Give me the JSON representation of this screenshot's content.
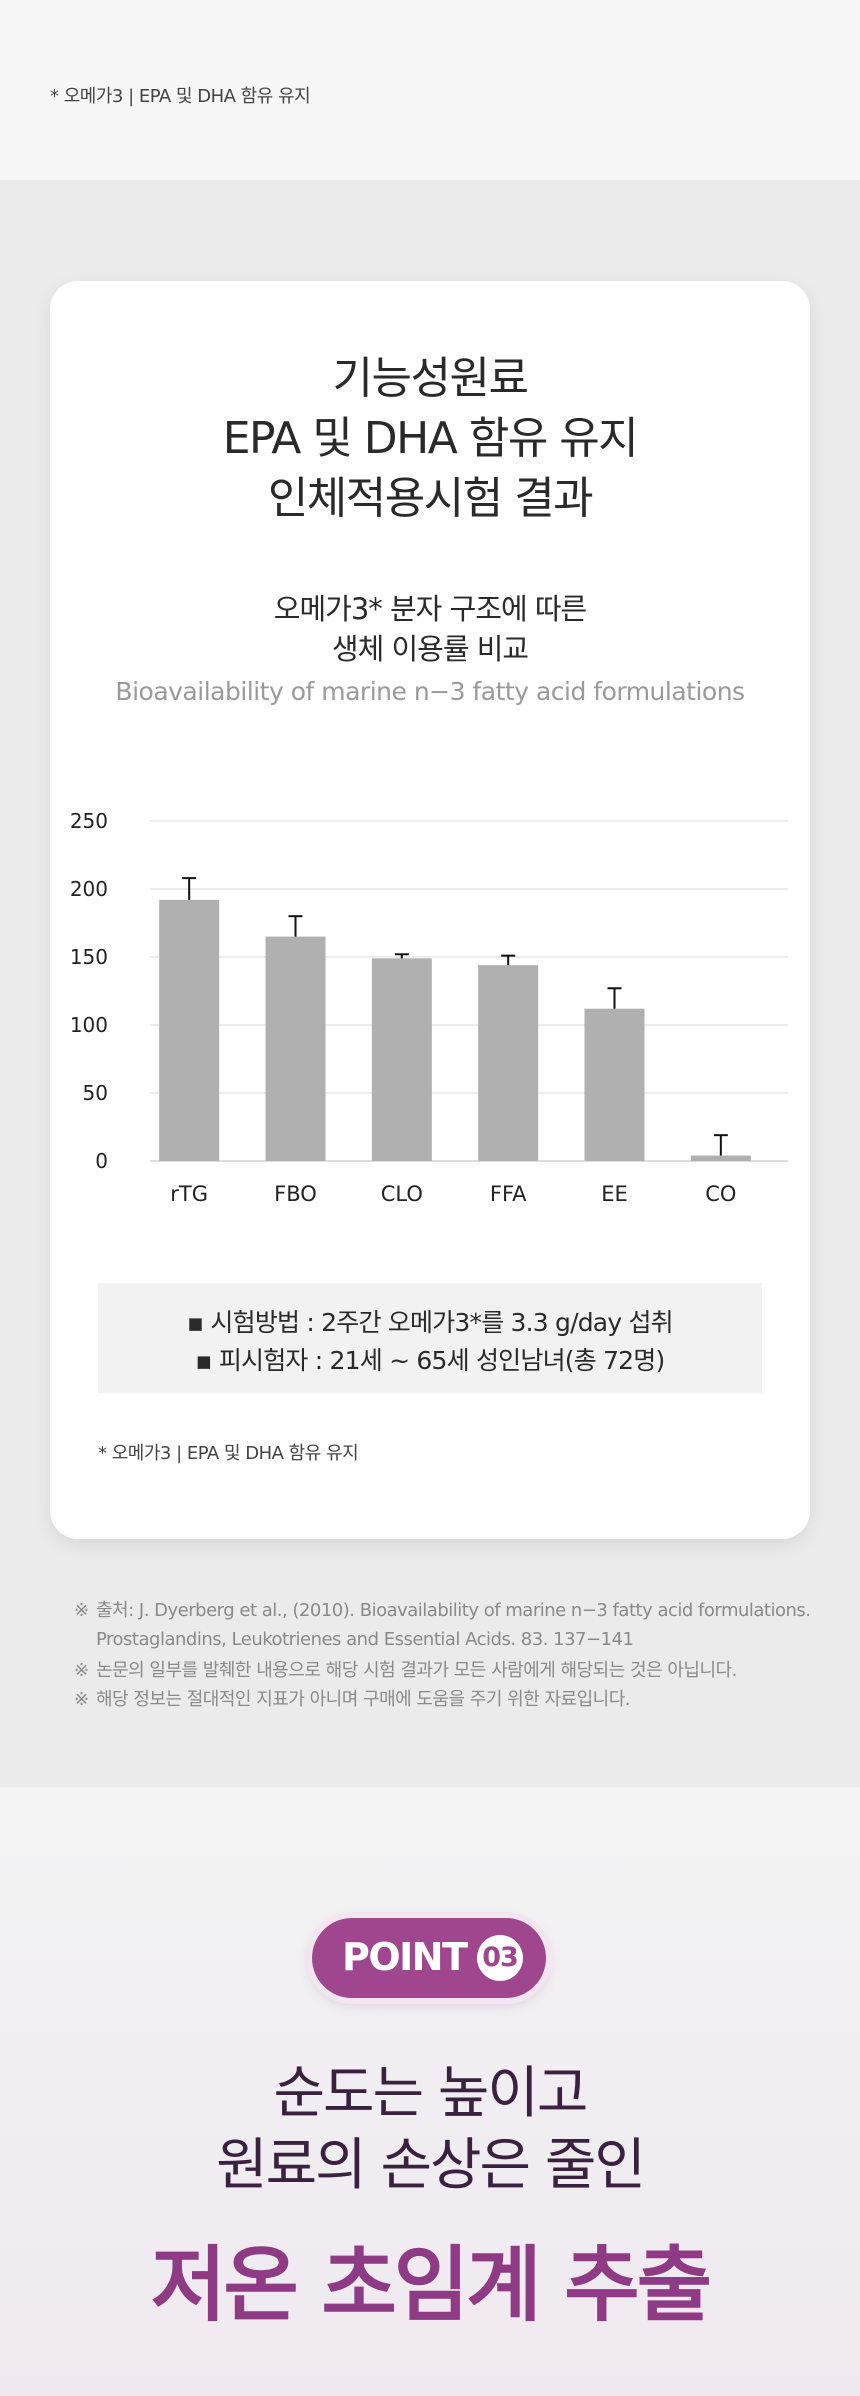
{
  "top_note": "*  오메가3 | EPA 및 DHA 함유 유지",
  "card": {
    "title_lines": [
      "기능성원료",
      "EPA 및 DHA 함유 유지",
      "인체적용시험 결과"
    ],
    "subtitle_lines": [
      "오메가3* 분자 구조에 따른",
      "생체 이용률 비교"
    ],
    "subtitle_en": "Bioavailability of marine n−3 fatty acid formulations",
    "method": {
      "row1": "▪ 시험방법 : 2주간 오메가3*를 3.3 g/day 섭취",
      "row2": "▪ 피시험자 : 21세 ~ 65세 성인남녀(총 72명)"
    },
    "note": "*  오메가3 | EPA 및 DHA 함유 유지"
  },
  "chart_data": {
    "type": "bar",
    "title": "Bioavailability of marine n−3 fatty acid formulations",
    "categories": [
      "rTG",
      "FBO",
      "CLO",
      "FFA",
      "EE",
      "CO"
    ],
    "values": [
      192,
      165,
      149,
      144,
      112,
      4
    ],
    "error_upper": [
      208,
      180,
      152,
      151,
      127,
      19
    ],
    "ylim": [
      0,
      250
    ],
    "yticks": [
      0,
      50,
      100,
      150,
      200,
      250
    ],
    "ytick_labels": [
      "0",
      "50",
      "100",
      "150",
      "200",
      "250"
    ],
    "grid": true,
    "xlabel": "",
    "ylabel": "",
    "colors": {
      "bar": "#b0b0b0",
      "grid": "#d8d8d8",
      "error": "#111111"
    }
  },
  "sources": {
    "mark": "※",
    "line1a": "출처: J. Dyerberg et al., (2010). Bioavailability of marine n−3 fatty acid formulations.",
    "line1b": "Prostaglandins, Leukotrienes and Essential Acids. 83. 137−141",
    "line2": "논문의 일부를 발췌한 내용으로 해당 시험 결과가 모든 사람에게 해당되는 것은 아닙니다.",
    "line3": "해당 정보는 절대적인 지표가 아니며 구매에 도움을 주기 위한 자료입니다."
  },
  "point": {
    "label": "POINT",
    "number": "03"
  },
  "headline": {
    "line1": "순도는 높이고",
    "line2": "원료의 손상은 줄인",
    "strong": "저온 초임계 추출"
  },
  "colors": {
    "accent": "#a0468f",
    "headline_strong": "#8e3a84",
    "headline_dark": "#3a2140"
  }
}
